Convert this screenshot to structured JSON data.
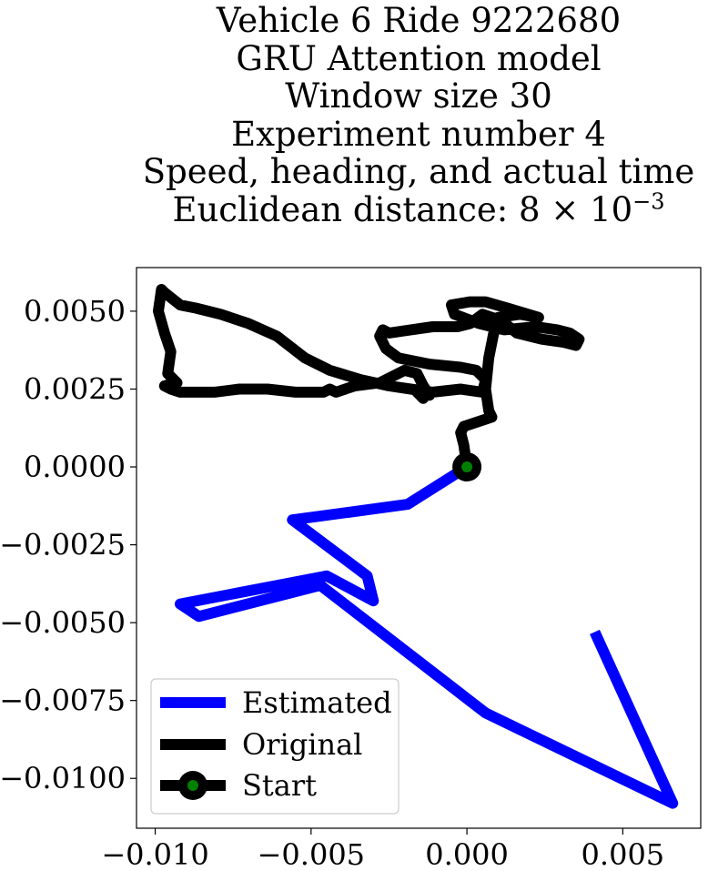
{
  "chart_data": {
    "type": "line",
    "title": [
      "Vehicle 6 Ride 9222680",
      "GRU Attention model",
      "Window size 30",
      "Experiment number 4",
      "Speed, heading, and actual time"
    ],
    "distance_label": {
      "prefix": "Euclidean distance: 8 × 10",
      "exponent": "−3"
    },
    "xlabel": "",
    "ylabel": "",
    "xlim": [
      -0.0106,
      0.0075
    ],
    "ylim": [
      -0.0116,
      0.0064
    ],
    "x_ticks": [
      -0.01,
      -0.005,
      0.0,
      0.005
    ],
    "x_tick_labels": [
      "−0.010",
      "−0.005",
      "0.000",
      "0.005"
    ],
    "y_ticks": [
      0.005,
      0.0025,
      0.0,
      -0.0025,
      -0.005,
      -0.0075,
      -0.01
    ],
    "y_tick_labels": [
      "0.0050",
      "0.0025",
      "0.0000",
      "−0.0025",
      "−0.0050",
      "−0.0075",
      "−0.0100"
    ],
    "grid": false,
    "legend_placement": "lower-left",
    "series": [
      {
        "name": "Estimated",
        "color": "#0000ff",
        "x": [
          0.0,
          -0.0019,
          -0.0056,
          -0.0032,
          -0.003,
          -0.0045,
          -0.0092,
          -0.0086,
          -0.0047,
          0.0006,
          0.0066,
          0.0041
        ],
        "y": [
          0.0,
          -0.0012,
          -0.0017,
          -0.0035,
          -0.0043,
          -0.0035,
          -0.0044,
          -0.0048,
          -0.0038,
          -0.0079,
          -0.0108,
          -0.0053
        ]
      },
      {
        "name": "Original",
        "color": "#000000",
        "x": [
          0.0,
          -0.0001,
          -0.0002,
          -0.0001,
          0.0008,
          0.0007,
          0.0006,
          0.0007,
          0.0009,
          0.001,
          0.0017,
          0.0023,
          0.0013,
          0.0006,
          0.0001,
          -0.0005,
          -0.0004,
          0.0004,
          0.0012,
          0.0022,
          0.0029,
          0.0033,
          0.0036,
          0.0035,
          0.0031,
          0.0024,
          0.0016,
          0.0011,
          0.0005,
          0.0001,
          -0.0003,
          -0.0011,
          -0.0018,
          -0.0025,
          -0.0027,
          -0.0028,
          -0.0026,
          -0.0022,
          -0.0012,
          -0.0002,
          0.0003,
          0.0006,
          0.0005,
          -0.0002,
          -0.0011,
          -0.0018,
          -0.0025,
          -0.0034,
          -0.0044,
          -0.0052,
          -0.0061,
          -0.007,
          -0.0079,
          -0.0087,
          -0.0092,
          -0.0097,
          -0.0098,
          -0.0099,
          -0.0097,
          -0.0095,
          -0.0096,
          -0.0093,
          -0.0097,
          -0.0095,
          -0.0092,
          -0.0087,
          -0.0081,
          -0.0073,
          -0.0064,
          -0.0055,
          -0.0046,
          -0.0044,
          -0.0042,
          -0.0036,
          -0.0028,
          -0.0024,
          -0.002,
          -0.0016,
          -0.0014,
          -0.0012,
          -0.0016,
          -0.0014
        ],
        "y": [
          0.0,
          0.0007,
          0.0011,
          0.0013,
          0.0016,
          0.0018,
          0.0025,
          0.0035,
          0.0045,
          0.0048,
          0.0049,
          0.0048,
          0.0051,
          0.0053,
          0.0053,
          0.0052,
          0.0049,
          0.0046,
          0.0044,
          0.0045,
          0.0044,
          0.0043,
          0.0041,
          0.0039,
          0.004,
          0.0041,
          0.0043,
          0.0047,
          0.0049,
          0.0046,
          0.0045,
          0.0045,
          0.0044,
          0.0043,
          0.0044,
          0.0042,
          0.0038,
          0.0035,
          0.0033,
          0.0032,
          0.0031,
          0.0028,
          0.0024,
          0.0025,
          0.0024,
          0.0025,
          0.0026,
          0.0028,
          0.0031,
          0.0035,
          0.0042,
          0.0046,
          0.0049,
          0.0051,
          0.0052,
          0.0056,
          0.0057,
          0.005,
          0.0043,
          0.0037,
          0.003,
          0.0027,
          0.0026,
          0.0025,
          0.0024,
          0.0024,
          0.0024,
          0.0025,
          0.0025,
          0.0024,
          0.0024,
          0.0025,
          0.0024,
          0.0026,
          0.0027,
          0.0029,
          0.0031,
          0.003,
          0.0026,
          0.0023,
          0.0024,
          0.0022
        ]
      },
      {
        "name": "Start",
        "color": "#000000",
        "marker_color": "#008000",
        "x": [
          0.0
        ],
        "y": [
          0.0
        ]
      }
    ]
  }
}
